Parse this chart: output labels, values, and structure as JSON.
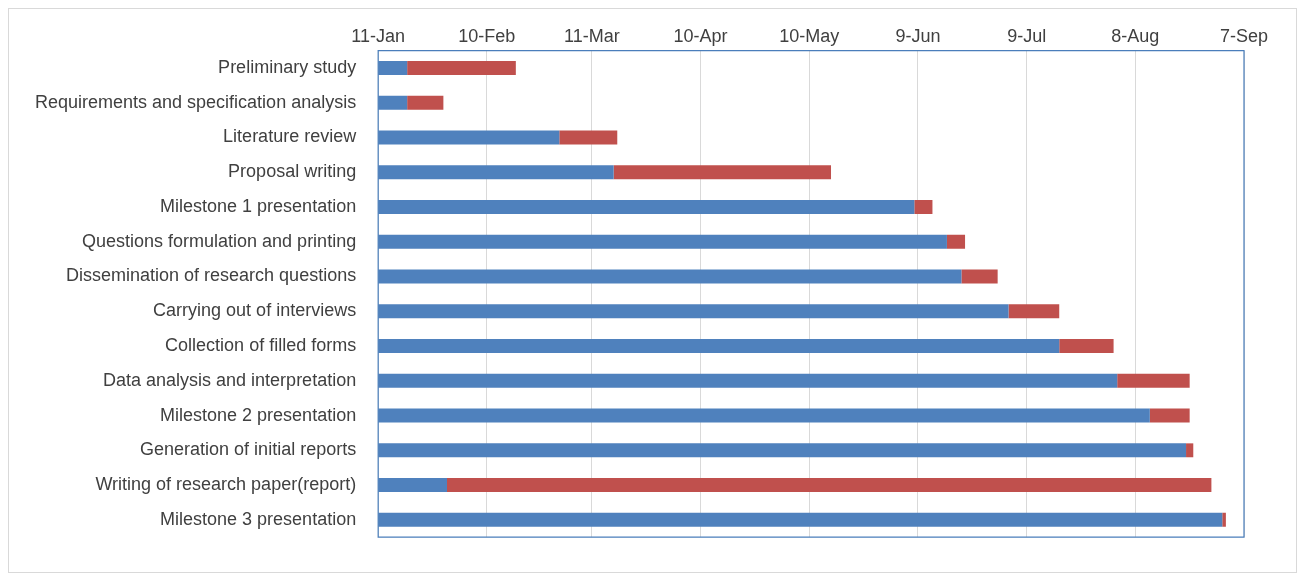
{
  "chart_data": {
    "type": "bar",
    "orientation": "horizontal",
    "categories": [
      "Preliminary study",
      "Requirements and specification analysis",
      "Literature review",
      "Proposal writing",
      "Milestone 1 presentation",
      "Questions formulation and printing",
      "Dissemination of research questions",
      "Carrying out of interviews",
      "Collection of filled forms",
      "Data analysis and interpretation",
      "Milestone 2 presentation",
      "Generation of initial reports",
      "Writing of research paper(report)",
      "Milestone 3 presentation"
    ],
    "series": [
      {
        "color": "#4f81bd",
        "base": [
          11333,
          11333,
          11333,
          11333,
          11333,
          11333,
          11333,
          11333,
          11333,
          11333,
          11333,
          11333,
          11333,
          11333
        ],
        "values": [
          8,
          8,
          50,
          65,
          148,
          157,
          161,
          174,
          188,
          204,
          213,
          223,
          19,
          233
        ]
      },
      {
        "color": "#c0504d",
        "base": [
          11341,
          11341,
          11383,
          11398,
          11481,
          11490,
          11494,
          11507,
          11521,
          11537,
          11546,
          11556,
          11352,
          11566
        ],
        "values": [
          30,
          10,
          16,
          60,
          5,
          5,
          10,
          14,
          15,
          20,
          11,
          2,
          211,
          1
        ]
      }
    ],
    "xlim": [
      "--01-11",
      "--09-07"
    ],
    "xticks": [
      {
        "value": "--01-11",
        "label": "11-Jan"
      },
      {
        "value": "--02-10",
        "label": "10-Feb"
      },
      {
        "value": "--03-11",
        "label": "11-Mar"
      },
      {
        "value": "--04-10",
        "label": "10-Apr"
      },
      {
        "value": "--05-10",
        "label": "10-May"
      },
      {
        "value": "--06-09",
        "label": "9-Jun"
      },
      {
        "value": "--07-09",
        "label": "9-Jul"
      },
      {
        "value": "--08-08",
        "label": "8-Aug"
      },
      {
        "value": "--09-07",
        "label": "7-Sep"
      }
    ],
    "grid": "x",
    "legend": false
  }
}
